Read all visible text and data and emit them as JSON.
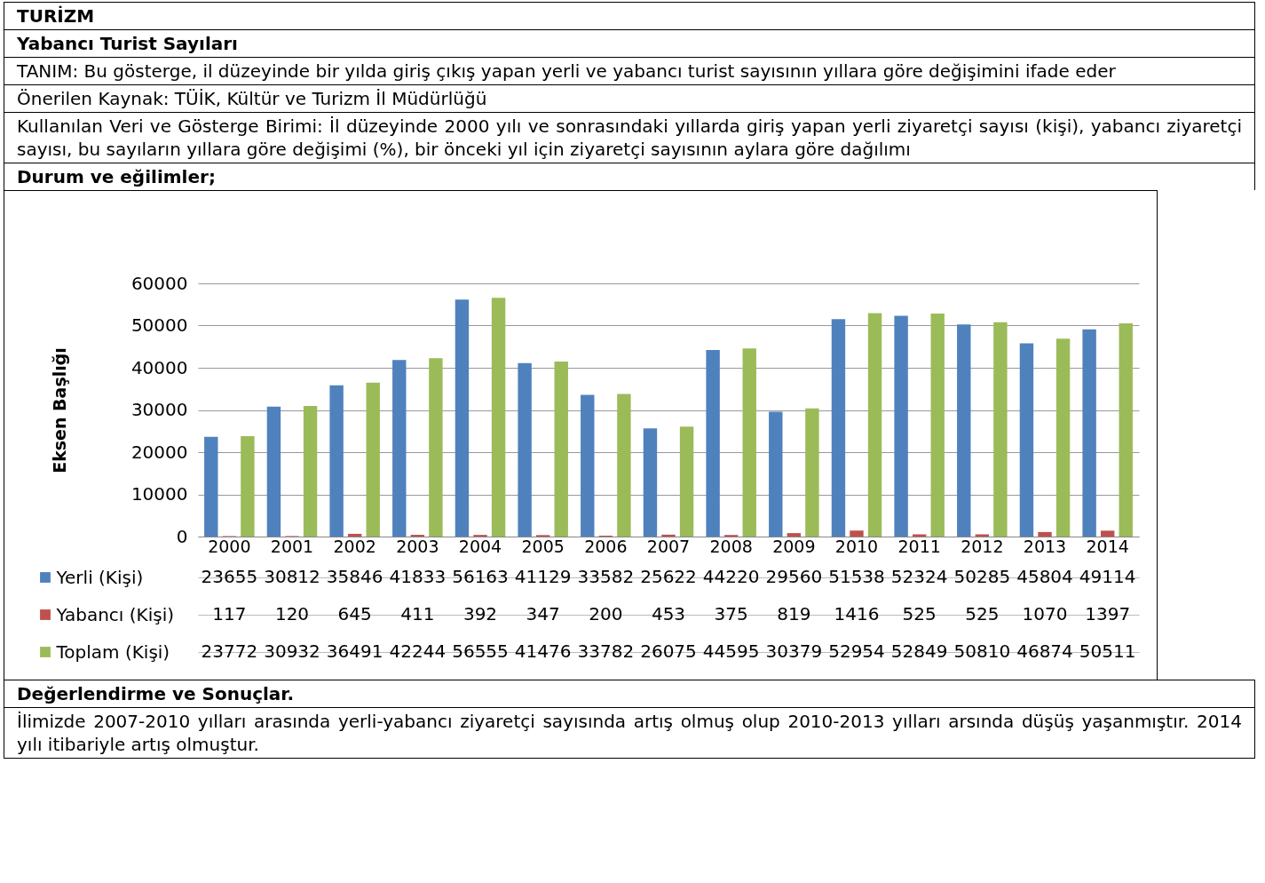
{
  "chart_data": {
    "type": "bar",
    "title": "TURİZM",
    "subtitle": "Yabancı Turist Sayıları",
    "annotations": [
      "TANIM: Bu gösterge, il düzeyinde bir yılda giriş çıkış yapan yerli ve yabancı turist sayısının yıllara göre değişimini ifade eder",
      "Önerilen Kaynak: TÜİK, Kültür ve Turizm İl Müdürlüğü",
      "Kullanılan Veri ve Gösterge Birimi: İl düzeyinde 2000 yılı ve sonrasındaki yıllarda giriş yapan yerli ziyaretçi sayısı (kişi), yabancı ziyaretçi sayısı, bu sayıların yıllara göre değişimi (%), bir önceki yıl için ziyaretçi sayısının aylara göre dağılımı",
      "Durum ve eğilimler;",
      "Değerlendirme ve Sonuçlar.",
      "İlimizde 2007-2010 yılları arasında yerli-yabancı ziyaretçi sayısında artış olmuş olup 2010-2013 yılları arsında düşüş yaşanmıştır. 2014 yılı itibariyle artış olmuştur."
    ],
    "ylabel": "Eksen Başlığı",
    "categories": [
      "2000",
      "2001",
      "2002",
      "2003",
      "2004",
      "2005",
      "2006",
      "2007",
      "2008",
      "2009",
      "2010",
      "2011",
      "2012",
      "2013",
      "2014"
    ],
    "series": [
      {
        "name": "Yerli (Kişi)",
        "color": "#4f81bd",
        "values": [
          23655,
          30812,
          35846,
          41833,
          56163,
          41129,
          33582,
          25622,
          44220,
          29560,
          51538,
          52324,
          50285,
          45804,
          49114
        ]
      },
      {
        "name": "Yabancı (Kişi)",
        "color": "#c0504d",
        "values": [
          117,
          120,
          645,
          411,
          392,
          347,
          200,
          453,
          375,
          819,
          1416,
          525,
          525,
          1070,
          1397
        ]
      },
      {
        "name": "Toplam (Kişi)",
        "color": "#9bbb59",
        "values": [
          23772,
          30932,
          36491,
          42244,
          56555,
          41476,
          33782,
          26075,
          44595,
          30379,
          52954,
          52849,
          50810,
          46874,
          50511
        ]
      }
    ],
    "ylim": [
      0,
      60000
    ],
    "yticks": [
      0,
      10000,
      20000,
      30000,
      40000,
      50000,
      60000
    ],
    "grid": "y",
    "legend": "bottom",
    "data_labels": true
  }
}
